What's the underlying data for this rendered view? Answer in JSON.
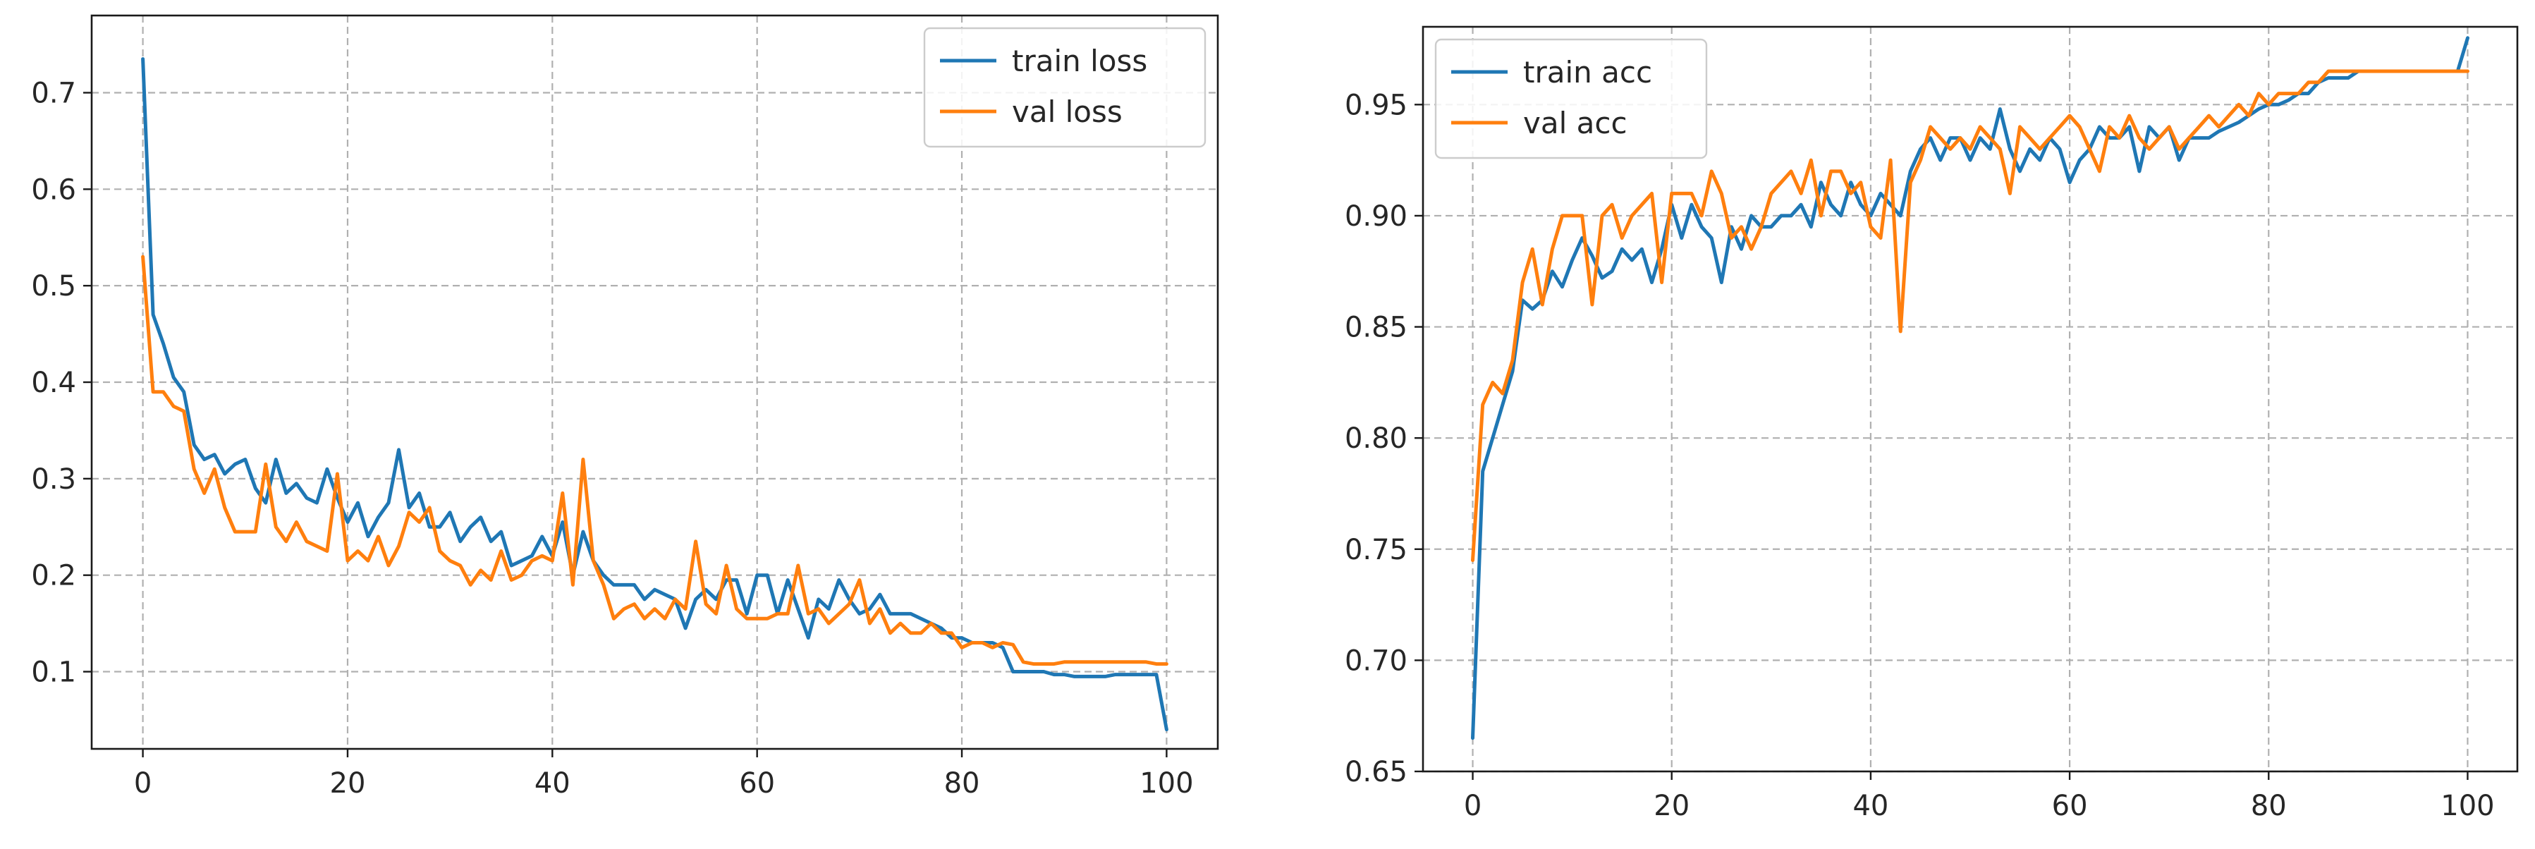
{
  "chart_data": [
    {
      "type": "line",
      "title": "",
      "xlabel": "",
      "ylabel": "",
      "xlim": [
        -5,
        105
      ],
      "ylim": [
        0.02,
        0.78
      ],
      "xticks": [
        0,
        20,
        40,
        60,
        80,
        100
      ],
      "yticks": [
        0.1,
        0.2,
        0.3,
        0.4,
        0.5,
        0.6,
        0.7
      ],
      "xtick_labels": [
        "0",
        "20",
        "40",
        "60",
        "80",
        "100"
      ],
      "ytick_labels": [
        "0.1",
        "0.2",
        "0.3",
        "0.4",
        "0.5",
        "0.6",
        "0.7"
      ],
      "grid": true,
      "legend_position": "top-right",
      "series": [
        {
          "name": "train loss",
          "color": "#1f77b4",
          "x": [
            0,
            1,
            2,
            3,
            4,
            5,
            6,
            7,
            8,
            9,
            10,
            11,
            12,
            13,
            14,
            15,
            16,
            17,
            18,
            19,
            20,
            21,
            22,
            23,
            24,
            25,
            26,
            27,
            28,
            29,
            30,
            31,
            32,
            33,
            34,
            35,
            36,
            37,
            38,
            39,
            40,
            41,
            42,
            43,
            44,
            45,
            46,
            47,
            48,
            49,
            50,
            51,
            52,
            53,
            54,
            55,
            56,
            57,
            58,
            59,
            60,
            61,
            62,
            63,
            64,
            65,
            66,
            67,
            68,
            69,
            70,
            71,
            72,
            73,
            74,
            75,
            76,
            77,
            78,
            79,
            80,
            81,
            82,
            83,
            84,
            85,
            86,
            87,
            88,
            89,
            90,
            91,
            92,
            93,
            94,
            95,
            96,
            97,
            98,
            99,
            100
          ],
          "y": [
            0.735,
            0.47,
            0.44,
            0.405,
            0.39,
            0.335,
            0.32,
            0.325,
            0.305,
            0.315,
            0.32,
            0.29,
            0.275,
            0.32,
            0.285,
            0.295,
            0.28,
            0.275,
            0.31,
            0.28,
            0.255,
            0.275,
            0.24,
            0.26,
            0.275,
            0.33,
            0.27,
            0.285,
            0.25,
            0.25,
            0.265,
            0.235,
            0.25,
            0.26,
            0.235,
            0.245,
            0.21,
            0.215,
            0.22,
            0.24,
            0.22,
            0.255,
            0.2,
            0.245,
            0.215,
            0.2,
            0.19,
            0.19,
            0.19,
            0.175,
            0.185,
            0.18,
            0.175,
            0.145,
            0.175,
            0.185,
            0.175,
            0.195,
            0.195,
            0.16,
            0.2,
            0.2,
            0.16,
            0.195,
            0.165,
            0.135,
            0.175,
            0.165,
            0.195,
            0.175,
            0.16,
            0.165,
            0.18,
            0.16,
            0.16,
            0.16,
            0.155,
            0.15,
            0.145,
            0.135,
            0.135,
            0.13,
            0.13,
            0.13,
            0.125,
            0.1,
            0.1,
            0.1,
            0.1,
            0.097,
            0.097,
            0.095,
            0.095,
            0.095,
            0.095,
            0.097,
            0.097,
            0.097,
            0.097,
            0.097,
            0.04
          ]
        },
        {
          "name": "val loss",
          "color": "#ff7f0e",
          "x": [
            0,
            1,
            2,
            3,
            4,
            5,
            6,
            7,
            8,
            9,
            10,
            11,
            12,
            13,
            14,
            15,
            16,
            17,
            18,
            19,
            20,
            21,
            22,
            23,
            24,
            25,
            26,
            27,
            28,
            29,
            30,
            31,
            32,
            33,
            34,
            35,
            36,
            37,
            38,
            39,
            40,
            41,
            42,
            43,
            44,
            45,
            46,
            47,
            48,
            49,
            50,
            51,
            52,
            53,
            54,
            55,
            56,
            57,
            58,
            59,
            60,
            61,
            62,
            63,
            64,
            65,
            66,
            67,
            68,
            69,
            70,
            71,
            72,
            73,
            74,
            75,
            76,
            77,
            78,
            79,
            80,
            81,
            82,
            83,
            84,
            85,
            86,
            87,
            88,
            89,
            90,
            91,
            92,
            93,
            94,
            95,
            96,
            97,
            98,
            99,
            100
          ],
          "y": [
            0.53,
            0.39,
            0.39,
            0.375,
            0.37,
            0.31,
            0.285,
            0.31,
            0.27,
            0.245,
            0.245,
            0.245,
            0.315,
            0.25,
            0.235,
            0.255,
            0.235,
            0.23,
            0.225,
            0.305,
            0.215,
            0.225,
            0.215,
            0.24,
            0.21,
            0.23,
            0.265,
            0.255,
            0.27,
            0.225,
            0.215,
            0.21,
            0.19,
            0.205,
            0.195,
            0.225,
            0.195,
            0.2,
            0.215,
            0.22,
            0.215,
            0.285,
            0.19,
            0.32,
            0.215,
            0.19,
            0.155,
            0.165,
            0.17,
            0.155,
            0.165,
            0.155,
            0.175,
            0.165,
            0.235,
            0.17,
            0.16,
            0.21,
            0.165,
            0.155,
            0.155,
            0.155,
            0.16,
            0.16,
            0.21,
            0.16,
            0.165,
            0.15,
            0.16,
            0.17,
            0.195,
            0.15,
            0.165,
            0.14,
            0.15,
            0.14,
            0.14,
            0.15,
            0.14,
            0.14,
            0.125,
            0.13,
            0.13,
            0.125,
            0.13,
            0.128,
            0.11,
            0.108,
            0.108,
            0.108,
            0.11,
            0.11,
            0.11,
            0.11,
            0.11,
            0.11,
            0.11,
            0.11,
            0.11,
            0.108,
            0.108
          ]
        }
      ]
    },
    {
      "type": "line",
      "title": "",
      "xlabel": "",
      "ylabel": "",
      "xlim": [
        -5,
        105
      ],
      "ylim": [
        0.65,
        0.985
      ],
      "xticks": [
        0,
        20,
        40,
        60,
        80,
        100
      ],
      "yticks": [
        0.65,
        0.7,
        0.75,
        0.8,
        0.85,
        0.9,
        0.95
      ],
      "xtick_labels": [
        "0",
        "20",
        "40",
        "60",
        "80",
        "100"
      ],
      "ytick_labels": [
        "0.65",
        "0.70",
        "0.75",
        "0.80",
        "0.85",
        "0.90",
        "0.95"
      ],
      "grid": true,
      "legend_position": "top-left",
      "series": [
        {
          "name": "train acc",
          "color": "#1f77b4",
          "x": [
            0,
            1,
            2,
            3,
            4,
            5,
            6,
            7,
            8,
            9,
            10,
            11,
            12,
            13,
            14,
            15,
            16,
            17,
            18,
            19,
            20,
            21,
            22,
            23,
            24,
            25,
            26,
            27,
            28,
            29,
            30,
            31,
            32,
            33,
            34,
            35,
            36,
            37,
            38,
            39,
            40,
            41,
            42,
            43,
            44,
            45,
            46,
            47,
            48,
            49,
            50,
            51,
            52,
            53,
            54,
            55,
            56,
            57,
            58,
            59,
            60,
            61,
            62,
            63,
            64,
            65,
            66,
            67,
            68,
            69,
            70,
            71,
            72,
            73,
            74,
            75,
            76,
            77,
            78,
            79,
            80,
            81,
            82,
            83,
            84,
            85,
            86,
            87,
            88,
            89,
            90,
            91,
            92,
            93,
            94,
            95,
            96,
            97,
            98,
            99,
            100
          ],
          "y": [
            0.665,
            0.785,
            0.8,
            0.815,
            0.83,
            0.862,
            0.858,
            0.862,
            0.875,
            0.868,
            0.88,
            0.89,
            0.882,
            0.872,
            0.875,
            0.885,
            0.88,
            0.885,
            0.87,
            0.885,
            0.905,
            0.89,
            0.905,
            0.895,
            0.89,
            0.87,
            0.895,
            0.885,
            0.9,
            0.895,
            0.895,
            0.9,
            0.9,
            0.905,
            0.895,
            0.915,
            0.905,
            0.9,
            0.915,
            0.905,
            0.9,
            0.91,
            0.905,
            0.9,
            0.92,
            0.93,
            0.935,
            0.925,
            0.935,
            0.935,
            0.925,
            0.935,
            0.93,
            0.948,
            0.93,
            0.92,
            0.93,
            0.925,
            0.935,
            0.93,
            0.915,
            0.925,
            0.93,
            0.94,
            0.935,
            0.935,
            0.94,
            0.92,
            0.94,
            0.935,
            0.94,
            0.925,
            0.935,
            0.935,
            0.935,
            0.938,
            0.94,
            0.942,
            0.945,
            0.948,
            0.95,
            0.95,
            0.952,
            0.955,
            0.955,
            0.96,
            0.962,
            0.962,
            0.962,
            0.965,
            0.965,
            0.965,
            0.965,
            0.965,
            0.965,
            0.965,
            0.965,
            0.965,
            0.965,
            0.965,
            0.98
          ]
        },
        {
          "name": "val acc",
          "color": "#ff7f0e",
          "x": [
            0,
            1,
            2,
            3,
            4,
            5,
            6,
            7,
            8,
            9,
            10,
            11,
            12,
            13,
            14,
            15,
            16,
            17,
            18,
            19,
            20,
            21,
            22,
            23,
            24,
            25,
            26,
            27,
            28,
            29,
            30,
            31,
            32,
            33,
            34,
            35,
            36,
            37,
            38,
            39,
            40,
            41,
            42,
            43,
            44,
            45,
            46,
            47,
            48,
            49,
            50,
            51,
            52,
            53,
            54,
            55,
            56,
            57,
            58,
            59,
            60,
            61,
            62,
            63,
            64,
            65,
            66,
            67,
            68,
            69,
            70,
            71,
            72,
            73,
            74,
            75,
            76,
            77,
            78,
            79,
            80,
            81,
            82,
            83,
            84,
            85,
            86,
            87,
            88,
            89,
            90,
            91,
            92,
            93,
            94,
            95,
            96,
            97,
            98,
            99,
            100
          ],
          "y": [
            0.745,
            0.815,
            0.825,
            0.82,
            0.835,
            0.87,
            0.885,
            0.86,
            0.885,
            0.9,
            0.9,
            0.9,
            0.86,
            0.9,
            0.905,
            0.89,
            0.9,
            0.905,
            0.91,
            0.87,
            0.91,
            0.91,
            0.91,
            0.9,
            0.92,
            0.91,
            0.89,
            0.895,
            0.885,
            0.895,
            0.91,
            0.915,
            0.92,
            0.91,
            0.925,
            0.9,
            0.92,
            0.92,
            0.91,
            0.915,
            0.895,
            0.89,
            0.925,
            0.848,
            0.915,
            0.925,
            0.94,
            0.935,
            0.93,
            0.935,
            0.93,
            0.94,
            0.935,
            0.93,
            0.91,
            0.94,
            0.935,
            0.93,
            0.935,
            0.94,
            0.945,
            0.94,
            0.93,
            0.92,
            0.94,
            0.935,
            0.945,
            0.935,
            0.93,
            0.935,
            0.94,
            0.93,
            0.935,
            0.94,
            0.945,
            0.94,
            0.945,
            0.95,
            0.945,
            0.955,
            0.95,
            0.955,
            0.955,
            0.955,
            0.96,
            0.96,
            0.965,
            0.965,
            0.965,
            0.965,
            0.965,
            0.965,
            0.965,
            0.965,
            0.965,
            0.965,
            0.965,
            0.965,
            0.965,
            0.965,
            0.965
          ]
        }
      ]
    }
  ]
}
